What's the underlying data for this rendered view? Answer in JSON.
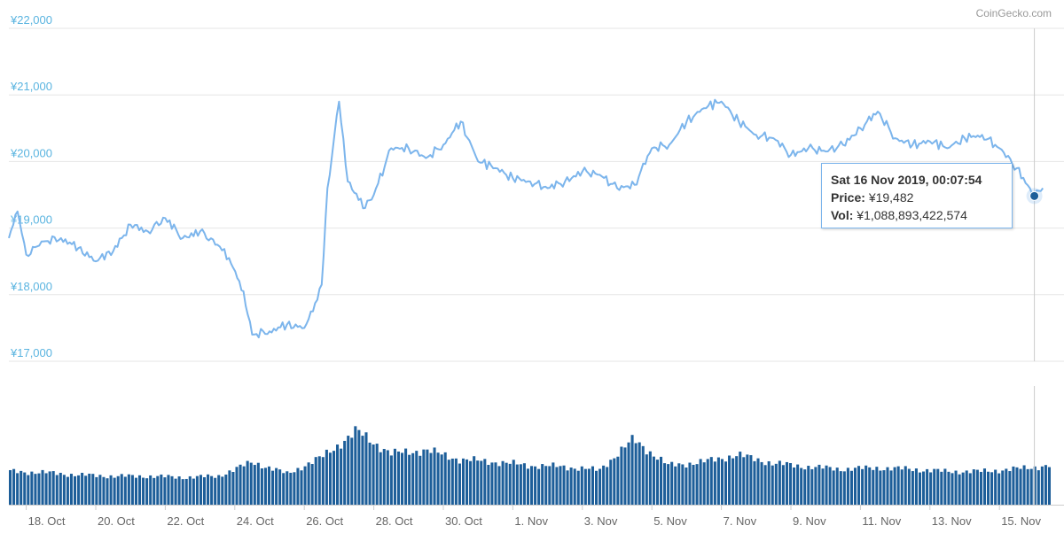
{
  "credit": "CoinGecko.com",
  "colors": {
    "price_line": "#7cb5ec",
    "volume_bar": "#1d5e99",
    "grid": "#e6e6e6",
    "axis_label_y": "#5ab4e0",
    "axis_label_x": "#666666",
    "crosshair": "#cccccc",
    "marker": "#1d5e99"
  },
  "tooltip": {
    "title": "Sat 16 Nov 2019, 00:07:54",
    "price_label": "Price:",
    "price_value": "¥19,482",
    "vol_label": "Vol:",
    "vol_value": "¥1,088,893,422,574"
  },
  "chart_data": {
    "type": "line",
    "title": "",
    "xlabel": "",
    "ylabel": "",
    "ylim": [
      17000,
      22000
    ],
    "y_ticks": [
      "¥17,000",
      "¥18,000",
      "¥19,000",
      "¥20,000",
      "¥21,000",
      "¥22,000"
    ],
    "y_tick_values": [
      17000,
      18000,
      19000,
      20000,
      21000,
      22000
    ],
    "x_ticks": [
      "18. Oct",
      "20. Oct",
      "22. Oct",
      "24. Oct",
      "26. Oct",
      "28. Oct",
      "30. Oct",
      "1. Nov",
      "3. Nov",
      "5. Nov",
      "7. Nov",
      "9. Nov",
      "11. Nov",
      "13. Nov",
      "15. Nov"
    ],
    "x_range_days": [
      "2019-10-17",
      "2019-11-16"
    ],
    "grid": true,
    "series": [
      {
        "type": "line",
        "x": [
          "2019-10-17T12:00",
          "2019-10-17T18:00",
          "2019-10-18T00:00",
          "2019-10-18T12:00",
          "2019-10-19T00:00",
          "2019-10-19T12:00",
          "2019-10-20T00:00",
          "2019-10-20T12:00",
          "2019-10-21T00:00",
          "2019-10-21T12:00",
          "2019-10-22T00:00",
          "2019-10-22T12:00",
          "2019-10-23T00:00",
          "2019-10-23T12:00",
          "2019-10-23T20:00",
          "2019-10-24T06:00",
          "2019-10-24T12:00",
          "2019-10-25T00:00",
          "2019-10-25T12:00",
          "2019-10-26T00:00",
          "2019-10-26T06:00",
          "2019-10-26T12:00",
          "2019-10-26T16:00",
          "2019-10-27T00:00",
          "2019-10-27T06:00",
          "2019-10-27T18:00",
          "2019-10-28T00:00",
          "2019-10-28T12:00",
          "2019-10-29T00:00",
          "2019-10-29T12:00",
          "2019-10-30T00:00",
          "2019-10-30T12:00",
          "2019-10-31T00:00",
          "2019-10-31T12:00",
          "2019-11-01T00:00",
          "2019-11-01T12:00",
          "2019-11-02T00:00",
          "2019-11-02T12:00",
          "2019-11-03T00:00",
          "2019-11-03T12:00",
          "2019-11-04T00:00",
          "2019-11-04T12:00",
          "2019-11-05T00:00",
          "2019-11-05T12:00",
          "2019-11-06T00:00",
          "2019-11-06T12:00",
          "2019-11-07T00:00",
          "2019-11-07T12:00",
          "2019-11-08T00:00",
          "2019-11-08T12:00",
          "2019-11-09T00:00",
          "2019-11-09T12:00",
          "2019-11-10T00:00",
          "2019-11-10T12:00",
          "2019-11-11T00:00",
          "2019-11-11T12:00",
          "2019-11-12T00:00",
          "2019-11-12T12:00",
          "2019-11-13T00:00",
          "2019-11-13T12:00",
          "2019-11-14T00:00",
          "2019-11-14T12:00",
          "2019-11-15T00:00",
          "2019-11-15T12:00",
          "2019-11-16T00:07",
          "2019-11-16T06:00"
        ],
        "values": [
          18850,
          19250,
          18600,
          18800,
          18850,
          18700,
          18500,
          18650,
          19050,
          18950,
          19150,
          18850,
          18950,
          18750,
          18550,
          18050,
          17400,
          17450,
          17550,
          17500,
          17750,
          18150,
          19600,
          20900,
          19700,
          19300,
          19500,
          20200,
          20200,
          20050,
          20250,
          20600,
          20000,
          19900,
          19750,
          19700,
          19600,
          19700,
          19850,
          19800,
          19600,
          19650,
          20200,
          20250,
          20600,
          20800,
          20900,
          20600,
          20400,
          20350,
          20100,
          20200,
          20150,
          20250,
          20500,
          20750,
          20350,
          20250,
          20300,
          20200,
          20350,
          20400,
          20200,
          19900,
          19482,
          19600
        ]
      },
      {
        "type": "bar",
        "name": "",
        "x": [
          "2019-10-17",
          "2019-10-18",
          "2019-10-19",
          "2019-10-20",
          "2019-10-21",
          "2019-10-22",
          "2019-10-23",
          "2019-10-24",
          "2019-10-25",
          "2019-10-26",
          "2019-10-27",
          "2019-10-28",
          "2019-10-29",
          "2019-10-30",
          "2019-10-31",
          "2019-11-01",
          "2019-11-02",
          "2019-11-03",
          "2019-11-04",
          "2019-11-05",
          "2019-11-06",
          "2019-11-07",
          "2019-11-08",
          "2019-11-09",
          "2019-11-10",
          "2019-11-11",
          "2019-11-12",
          "2019-11-13",
          "2019-11-14",
          "2019-11-15",
          "2019-11-16"
        ],
        "values": [
          0.28,
          0.27,
          0.25,
          0.24,
          0.24,
          0.23,
          0.24,
          0.36,
          0.26,
          0.4,
          0.62,
          0.43,
          0.46,
          0.38,
          0.36,
          0.33,
          0.32,
          0.29,
          0.55,
          0.33,
          0.36,
          0.42,
          0.35,
          0.32,
          0.3,
          0.31,
          0.3,
          0.28,
          0.28,
          0.3,
          0.33
        ]
      }
    ]
  }
}
